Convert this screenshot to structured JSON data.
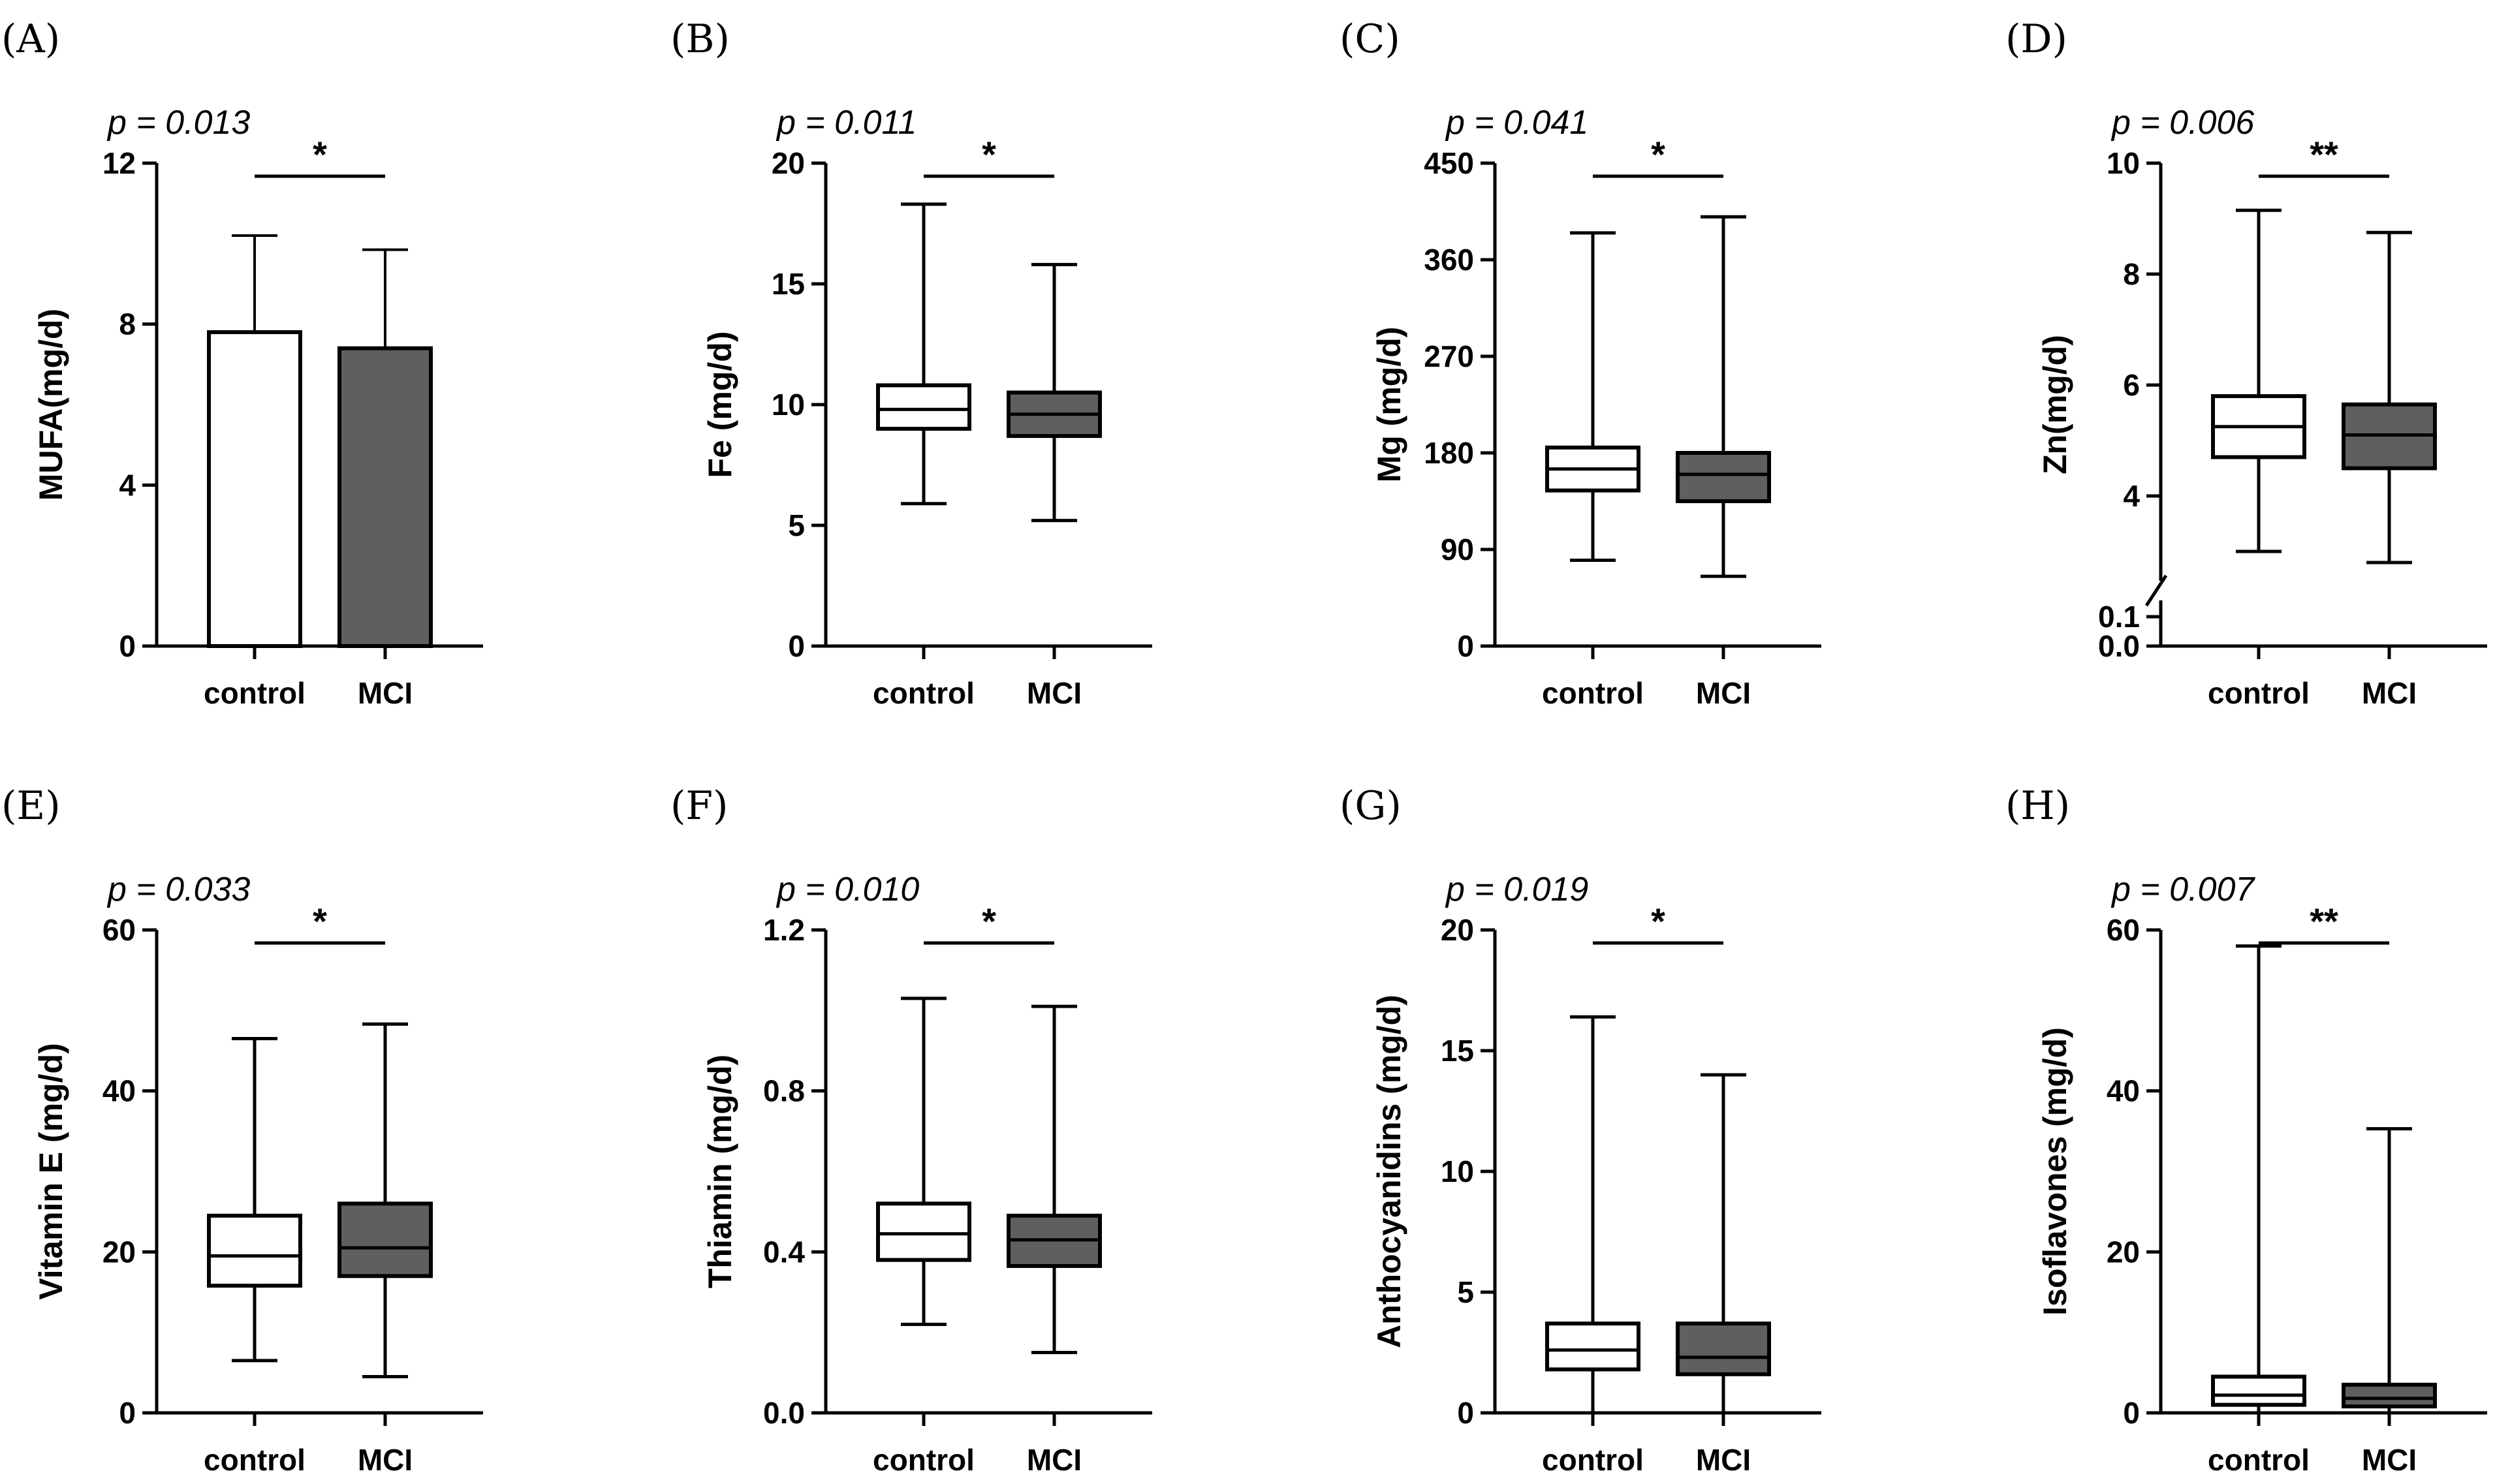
{
  "figure": {
    "colors": {
      "control": "#ffffff",
      "mci": "#5f5f5f",
      "stroke": "#000000"
    }
  },
  "chart_data": [
    {
      "panel": "(A)",
      "type": "bar",
      "ylabel": "MUFA(mg/d)",
      "categories": [
        "control",
        "MCI"
      ],
      "ylim": [
        0,
        12
      ],
      "yticks": [
        0,
        4,
        8,
        12
      ],
      "tick_labels": [
        "0",
        "4",
        "8",
        "12"
      ],
      "values": [
        7.8,
        7.4
      ],
      "error_upper": [
        10.2,
        9.85
      ],
      "p_value": "p = 0.013",
      "significance": "*"
    },
    {
      "panel": "(B)",
      "type": "box",
      "ylabel": "Fe (mg/d)",
      "categories": [
        "control",
        "MCI"
      ],
      "ylim": [
        0,
        20
      ],
      "yticks": [
        0,
        5,
        10,
        15,
        20
      ],
      "tick_labels": [
        "0",
        "5",
        "10",
        "15",
        "20"
      ],
      "boxes": [
        {
          "min": 5.9,
          "q1": 9.0,
          "median": 9.8,
          "q3": 10.8,
          "max": 18.3
        },
        {
          "min": 5.2,
          "q1": 8.7,
          "median": 9.6,
          "q3": 10.5,
          "max": 15.8
        }
      ],
      "p_value": "p = 0.011",
      "significance": "*"
    },
    {
      "panel": "(C)",
      "type": "box",
      "ylabel": "Mg (mg/d)",
      "categories": [
        "control",
        "MCI"
      ],
      "ylim": [
        0,
        450
      ],
      "yticks": [
        0,
        90,
        180,
        270,
        360,
        450
      ],
      "tick_labels": [
        "0",
        "90",
        "180",
        "270",
        "360",
        "450"
      ],
      "boxes": [
        {
          "min": 80,
          "q1": 145,
          "median": 165,
          "q3": 185,
          "max": 385
        },
        {
          "min": 65,
          "q1": 135,
          "median": 160,
          "q3": 180,
          "max": 400
        }
      ],
      "p_value": "p = 0.041",
      "significance": "*"
    },
    {
      "panel": "(D)",
      "type": "box",
      "ylabel": "Zn(mg/d)",
      "categories": [
        "control",
        "MCI"
      ],
      "ylim": [
        0,
        10
      ],
      "axis_break": [
        0.1,
        2
      ],
      "yticks": [
        0,
        0.1,
        4,
        6,
        8,
        10
      ],
      "tick_labels": [
        "0.0",
        "0.1",
        "4",
        "6",
        "8",
        "10"
      ],
      "boxes": [
        {
          "min": 3.0,
          "q1": 4.7,
          "median": 5.25,
          "q3": 5.8,
          "max": 9.15
        },
        {
          "min": 2.8,
          "q1": 4.5,
          "median": 5.1,
          "q3": 5.65,
          "max": 8.75
        }
      ],
      "p_value": "p = 0.006",
      "significance": "**"
    },
    {
      "panel": "(E)",
      "type": "box",
      "ylabel": "Vitamin E (mg/d)",
      "categories": [
        "control",
        "MCI"
      ],
      "ylim": [
        0,
        60
      ],
      "yticks": [
        0,
        20,
        40,
        60
      ],
      "tick_labels": [
        "0",
        "20",
        "40",
        "60"
      ],
      "boxes": [
        {
          "min": 6.5,
          "q1": 15.8,
          "median": 19.5,
          "q3": 24.5,
          "max": 46.5
        },
        {
          "min": 4.5,
          "q1": 17.0,
          "median": 20.5,
          "q3": 26.0,
          "max": 48.3
        }
      ],
      "p_value": "p = 0.033",
      "significance": "*"
    },
    {
      "panel": "(F)",
      "type": "box",
      "ylabel": "Thiamin (mg/d)",
      "categories": [
        "control",
        "MCI"
      ],
      "ylim": [
        0,
        1.2
      ],
      "yticks": [
        0,
        0.4,
        0.8,
        1.2
      ],
      "tick_labels": [
        "0.0",
        "0.4",
        "0.8",
        "1.2"
      ],
      "boxes": [
        {
          "min": 0.22,
          "q1": 0.38,
          "median": 0.445,
          "q3": 0.52,
          "max": 1.03
        },
        {
          "min": 0.15,
          "q1": 0.365,
          "median": 0.43,
          "q3": 0.49,
          "max": 1.01
        }
      ],
      "p_value": "p = 0.010",
      "significance": "*"
    },
    {
      "panel": "(G)",
      "type": "box",
      "ylabel": "Anthocyanidins (mg/d)",
      "categories": [
        "control",
        "MCI"
      ],
      "ylim": [
        0,
        20
      ],
      "yticks": [
        0,
        5,
        10,
        15,
        20
      ],
      "tick_labels": [
        "0",
        "5",
        "10",
        "15",
        "20"
      ],
      "boxes": [
        {
          "min": 0,
          "q1": 1.8,
          "median": 2.6,
          "q3": 3.7,
          "max": 16.4
        },
        {
          "min": 0,
          "q1": 1.6,
          "median": 2.3,
          "q3": 3.7,
          "max": 14.0
        }
      ],
      "p_value": "p = 0.019",
      "significance": "*"
    },
    {
      "panel": "(H)",
      "type": "box",
      "ylabel": "Isoflavones (mg/d)",
      "categories": [
        "control",
        "MCI"
      ],
      "ylim": [
        0,
        60
      ],
      "yticks": [
        0,
        20,
        40,
        60
      ],
      "tick_labels": [
        "0",
        "20",
        "40",
        "60"
      ],
      "boxes": [
        {
          "min": 0,
          "q1": 1.0,
          "median": 2.2,
          "q3": 4.5,
          "max": 58.0
        },
        {
          "min": 0,
          "q1": 0.8,
          "median": 1.8,
          "q3": 3.5,
          "max": 35.3
        }
      ],
      "p_value": "p = 0.007",
      "significance": "**"
    }
  ]
}
